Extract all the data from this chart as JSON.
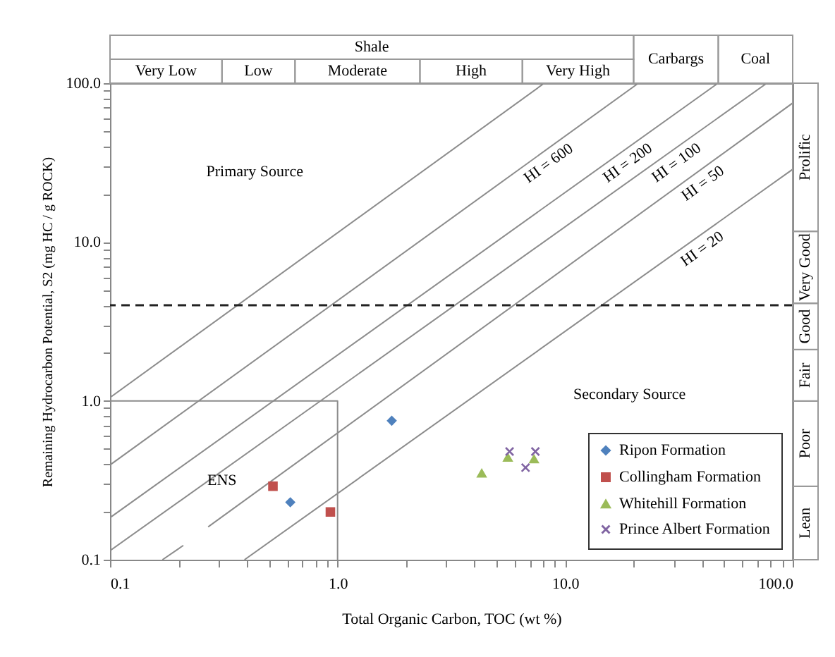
{
  "chart_data": {
    "type": "scatter",
    "xlabel": "Total Organic Carbon, TOC (wt %)",
    "ylabel": "Remaining Hydrocarbon Potential, S2 (mg HC / g ROCK)",
    "log": "xy",
    "xlim": [
      0.1,
      100
    ],
    "ylim": [
      0.1,
      100
    ],
    "xticks": [
      0.1,
      {
        "value": 0.2,
        "label": null
      },
      {
        "value": 0.3,
        "label": null
      },
      {
        "value": 0.4,
        "label": null
      },
      {
        "value": 0.5,
        "label": null
      },
      {
        "value": 0.6,
        "label": null
      },
      {
        "value": 0.7,
        "label": null
      },
      {
        "value": 0.8,
        "label": null
      },
      {
        "value": 0.9,
        "label": null
      },
      {
        "value": 1,
        "label": "1.0"
      },
      {
        "value": 2,
        "label": null
      },
      {
        "value": 3,
        "label": null
      },
      {
        "value": 4,
        "label": null
      },
      {
        "value": 5,
        "label": null
      },
      {
        "value": 6,
        "label": null
      },
      {
        "value": 7,
        "label": null
      },
      {
        "value": 8,
        "label": null
      },
      {
        "value": 9,
        "label": null
      },
      {
        "value": 10,
        "label": "10.0"
      },
      {
        "value": 20,
        "label": null
      },
      {
        "value": 30,
        "label": null
      },
      {
        "value": 40,
        "label": null
      },
      {
        "value": 50,
        "label": null
      },
      {
        "value": 60,
        "label": null
      },
      {
        "value": 70,
        "label": null
      },
      {
        "value": 80,
        "label": null
      },
      {
        "value": 90,
        "label": null
      },
      {
        "value": 100,
        "label": "100.0"
      }
    ],
    "yticks": [
      0.1,
      {
        "value": 0.2,
        "label": null
      },
      {
        "value": 0.3,
        "label": null
      },
      {
        "value": 0.4,
        "label": null
      },
      {
        "value": 0.5,
        "label": null
      },
      {
        "value": 0.6,
        "label": null
      },
      {
        "value": 0.7,
        "label": null
      },
      {
        "value": 0.8,
        "label": null
      },
      {
        "value": 0.9,
        "label": null
      },
      {
        "value": 1,
        "label": "1.0"
      },
      {
        "value": 2,
        "label": null
      },
      {
        "value": 3,
        "label": null
      },
      {
        "value": 4,
        "label": null
      },
      {
        "value": 5,
        "label": null
      },
      {
        "value": 6,
        "label": null
      },
      {
        "value": 7,
        "label": null
      },
      {
        "value": 8,
        "label": null
      },
      {
        "value": 9,
        "label": null
      },
      {
        "value": 10,
        "label": "10.0"
      },
      {
        "value": 20,
        "label": null
      },
      {
        "value": 30,
        "label": null
      },
      {
        "value": 40,
        "label": null
      },
      {
        "value": 50,
        "label": null
      },
      {
        "value": 60,
        "label": null
      },
      {
        "value": 70,
        "label": null
      },
      {
        "value": 80,
        "label": null
      },
      {
        "value": 90,
        "label": null
      },
      {
        "value": 100,
        "label": "100.0"
      }
    ],
    "legend": "bottom right",
    "series": [
      {
        "type": "line",
        "color": "#8c8c8c",
        "x": [
          0.1,
          8.1
        ],
        "values": [
          1.05,
          100
        ]
      },
      {
        "type": "line",
        "name": "HI = 600",
        "color": "#8c8c8c",
        "x": [
          0.1,
          21
        ],
        "values": [
          0.395,
          100
        ]
      },
      {
        "type": "line",
        "name": "HI = 200",
        "color": "#8c8c8c",
        "x": [
          0.1,
          47
        ],
        "values": [
          0.184,
          100
        ]
      },
      {
        "type": "line",
        "name": "HI = 100",
        "color": "#8c8c8c",
        "x": [
          0.1,
          77
        ],
        "values": [
          0.114,
          100
        ]
      },
      {
        "type": "line",
        "name": "HI = 50",
        "color": "#8c8c8c",
        "x": [
          0.27,
          100
        ],
        "values": [
          0.161,
          75
        ]
      },
      {
        "type": "line",
        "name": "HI = 20",
        "color": "#8c8c8c",
        "x": [
          0.39,
          100
        ],
        "values": [
          0.1,
          28.7
        ]
      },
      {
        "type": "line",
        "color": "#8c8c8c",
        "x": [
          0.17,
          0.21
        ],
        "values": [
          0.1,
          0.123
        ]
      },
      {
        "type": "line",
        "color": "#8c8c8c",
        "x": [
          0.1,
          1,
          1
        ],
        "values": [
          1,
          1,
          0.1
        ]
      },
      {
        "name": "Ripon Formation",
        "marker": "diamond",
        "color": "#4f81bd",
        "x": [
          1.73,
          0.62
        ],
        "values": [
          0.75,
          0.23
        ]
      },
      {
        "name": "Collingham Formation",
        "marker": "square",
        "color": "#c0504d",
        "x": [
          0.52,
          0.93
        ],
        "values": [
          0.29,
          0.2
        ]
      },
      {
        "name": "Whitehill Formation",
        "marker": "triangle",
        "color": "#9bbb59",
        "x": [
          4.3,
          5.6,
          7.3
        ],
        "values": [
          0.35,
          0.44,
          0.43
        ]
      },
      {
        "name": "Prince Albert Formation",
        "marker": "cross",
        "color": "#8064a2",
        "x": [
          5.7,
          7.4,
          6.7
        ],
        "values": [
          0.48,
          0.48,
          0.38
        ]
      }
    ],
    "ref_lines": [
      {
        "axis": "y",
        "value": 4,
        "line_style": "dashed"
      }
    ],
    "annotations": [
      "Primary Source",
      "Secondary Source",
      "ENS",
      "Shale",
      "Very Low",
      "Low",
      "Moderate",
      "High",
      "Very High",
      "Carbargs",
      "Coal",
      "Prolific",
      "Very Good",
      "Good",
      "Fair",
      "Poor",
      "Lean"
    ]
  }
}
